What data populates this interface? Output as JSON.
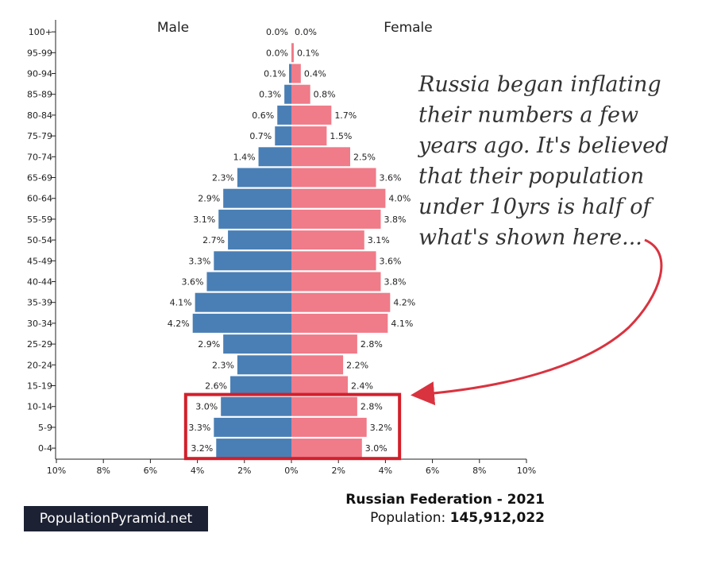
{
  "chart_data": {
    "type": "bar",
    "orientation": "horizontal-pyramid",
    "categories": [
      "100+",
      "95-99",
      "90-94",
      "85-89",
      "80-84",
      "75-79",
      "70-74",
      "65-69",
      "60-64",
      "55-59",
      "50-54",
      "45-49",
      "40-44",
      "35-39",
      "30-34",
      "25-29",
      "20-24",
      "15-19",
      "10-14",
      "5-9",
      "0-4"
    ],
    "series": [
      {
        "name": "Male",
        "values": [
          0.0,
          0.0,
          0.1,
          0.3,
          0.6,
          0.7,
          1.4,
          2.3,
          2.9,
          3.1,
          2.7,
          3.3,
          3.6,
          4.1,
          4.2,
          2.9,
          2.3,
          2.6,
          3.0,
          3.3,
          3.2
        ],
        "color": "#4a7fb5"
      },
      {
        "name": "Female",
        "values": [
          0.0,
          0.1,
          0.4,
          0.8,
          1.7,
          1.5,
          2.5,
          3.6,
          4.0,
          3.8,
          3.1,
          3.6,
          3.8,
          4.2,
          4.1,
          2.8,
          2.2,
          2.4,
          2.8,
          3.2,
          3.0
        ],
        "color": "#f07b89"
      }
    ],
    "x_ticks": [
      "10%",
      "8%",
      "6%",
      "4%",
      "2%",
      "0%",
      "2%",
      "4%",
      "6%",
      "8%",
      "10%"
    ],
    "xlim": [
      -10,
      10
    ],
    "highlight_categories": [
      "10-14",
      "5-9",
      "0-4"
    ],
    "highlight_color": "#d21f2b",
    "annotation": [
      "Russia began inflating",
      "their numbers a few",
      "years ago. It's believed",
      "that their population",
      "under 10yrs is half of",
      "what's shown here..."
    ]
  },
  "labels": {
    "male": "Male",
    "female": "Female"
  },
  "footer": {
    "brand": "PopulationPyramid.net",
    "country": "Russian Federation - 2021",
    "population_label": "Population:",
    "population_value": "145,912,022"
  }
}
